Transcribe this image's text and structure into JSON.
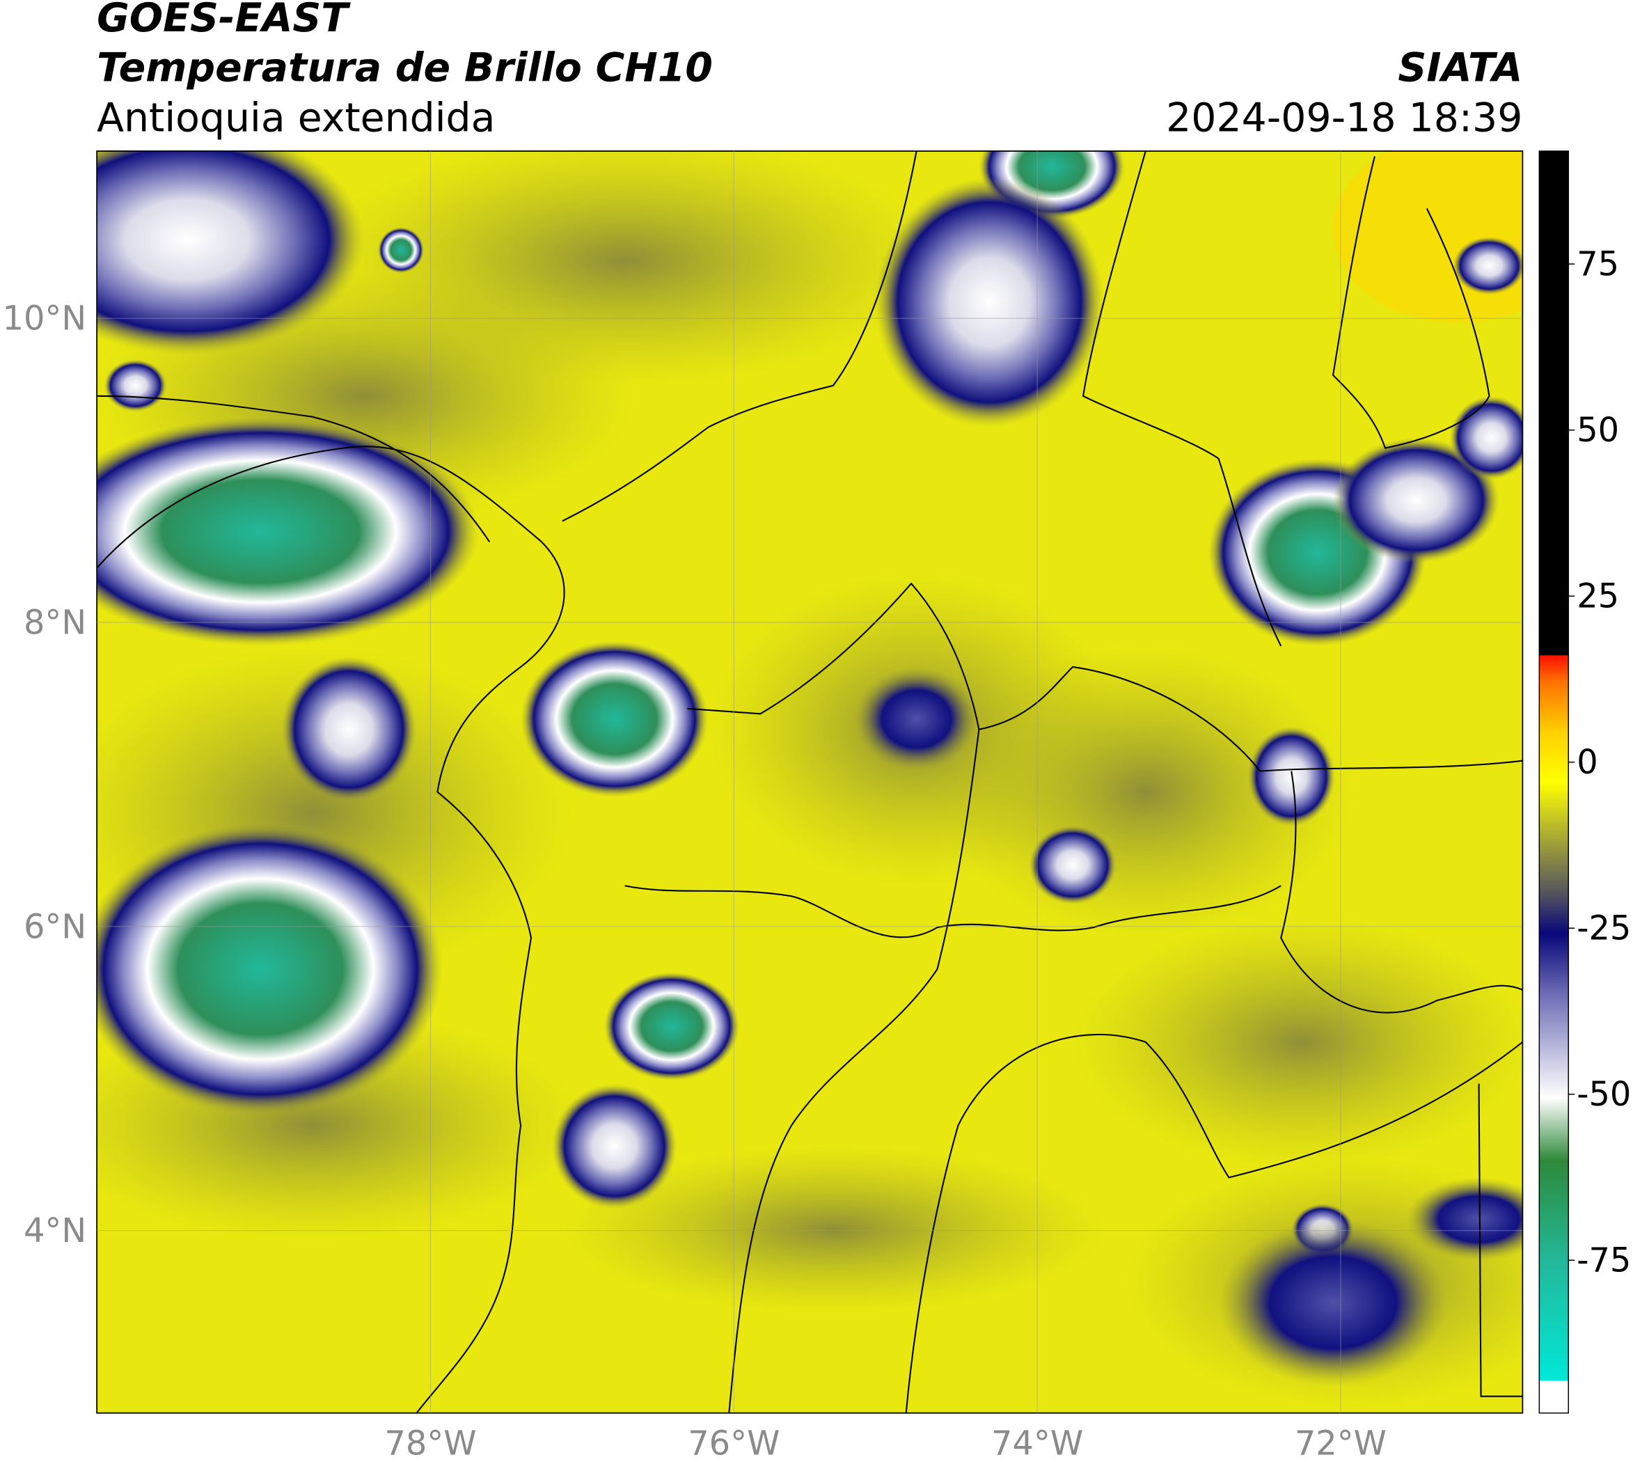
{
  "header": {
    "satellite": "GOES-EAST",
    "product": "Temperatura de Brillo CH10",
    "region": "Antioquia extendida",
    "organization": "SIATA",
    "datetime": "2024-09-18 18:39"
  },
  "map": {
    "lon_lim": [
      -80.2,
      -70.8
    ],
    "lat_lim": [
      2.8,
      11.1
    ],
    "lon_ticks": [
      {
        "value": -78,
        "label": "78°W"
      },
      {
        "value": -76,
        "label": "76°W"
      },
      {
        "value": -74,
        "label": "74°W"
      },
      {
        "value": -72,
        "label": "72°W"
      }
    ],
    "lat_ticks": [
      {
        "value": 10,
        "label": "10°N"
      },
      {
        "value": 8,
        "label": "8°N"
      },
      {
        "value": 6,
        "label": "6°N"
      },
      {
        "value": 4,
        "label": "4°N"
      }
    ],
    "grid": true
  },
  "colorbar": {
    "lim": [
      -98,
      92
    ],
    "ticks": [
      75,
      50,
      25,
      0,
      -25,
      -50,
      -75
    ]
  }
}
